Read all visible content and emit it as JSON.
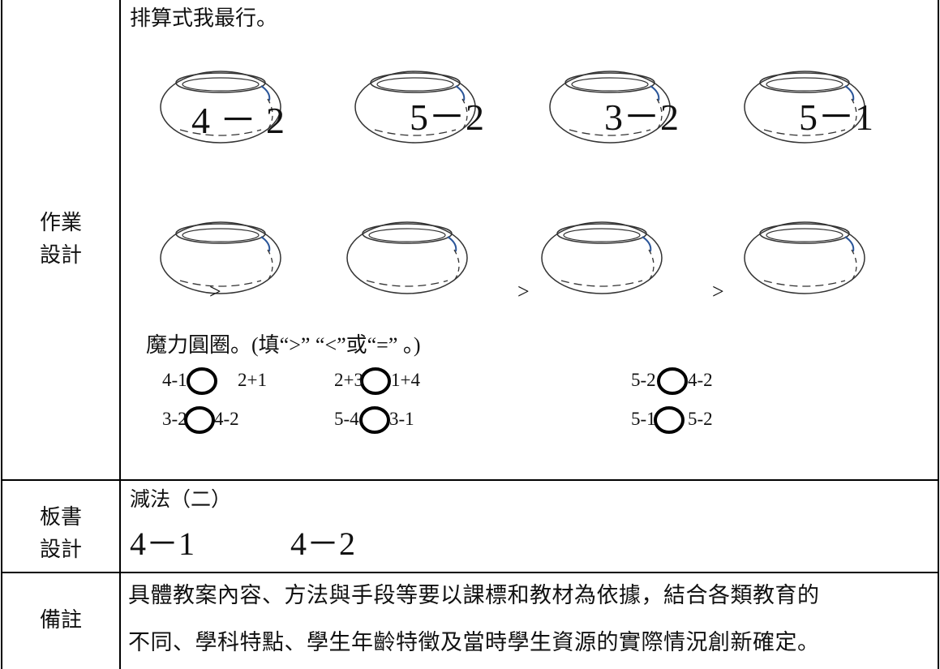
{
  "homework": {
    "label": [
      "作業",
      "設計"
    ],
    "title": "排算式我最行。",
    "bowls": [
      "4 － 2",
      "5－2",
      "3－2",
      "5－1"
    ],
    "signs": [
      ">",
      ">",
      ">"
    ],
    "circle_title": "魔力圓圈。(填“>” “<”或“=” 。)",
    "comparisons": [
      [
        "4-1",
        "2+1"
      ],
      [
        "2+3",
        "1+4"
      ],
      [
        "5-2",
        "4-2"
      ],
      [
        "3-2",
        "4-2"
      ],
      [
        "5-4",
        "3-1"
      ],
      [
        "5-1",
        "5-2"
      ]
    ]
  },
  "board": {
    "label": [
      "板書",
      "設計"
    ],
    "title": "減法（二）",
    "expressions": [
      "4－1",
      "4－2"
    ]
  },
  "notes": {
    "label": "備註",
    "lines": [
      "具體教案內容、方法與手段等要以課標和教材為依據，結合各類教育的",
      "不同、學科特點、學生年齡特徵及當時學生資源的實際情況創新確定。"
    ]
  }
}
